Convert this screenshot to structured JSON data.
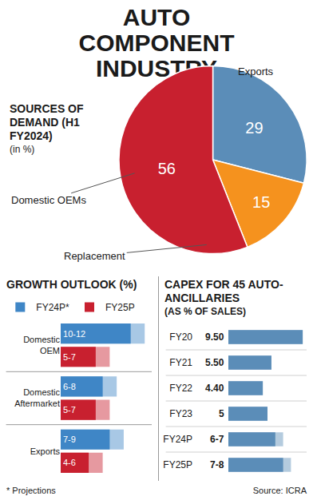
{
  "title": "AUTO COMPONENT INDUSTRY",
  "footnote": "* Projections",
  "source": "Source: ICRA",
  "chart_data": [
    {
      "type": "pie",
      "title": "SOURCES OF DEMAND (H1 FY2024)",
      "subtitle": "(in %)",
      "categories": [
        "Exports",
        "Replacement",
        "Domestic OEMs"
      ],
      "values": [
        29,
        15,
        56
      ],
      "colors": [
        "#5b8db8",
        "#f5921e",
        "#c8202f"
      ],
      "data_labels": true
    },
    {
      "type": "bar",
      "title": "GROWTH OUTLOOK (%)",
      "orientation": "horizontal",
      "categories": [
        "Domestic OEM",
        "Domestic Aftermarket",
        "Exports"
      ],
      "series": [
        {
          "name": "FY24P*",
          "color": "#3f86c6",
          "low": [
            10,
            6,
            7
          ],
          "values": [
            12,
            8,
            9
          ],
          "value_labels": [
            "10-12",
            "6-8",
            "7-9"
          ]
        },
        {
          "name": "FY25P",
          "color": "#c8202f",
          "low": [
            5,
            5,
            4
          ],
          "values": [
            7,
            7,
            6
          ],
          "value_labels": [
            "5-7",
            "5-7",
            "4-6"
          ]
        }
      ],
      "xlim": [
        0,
        13
      ],
      "data_labels": true,
      "tick_labels": "y",
      "legend": "top"
    },
    {
      "type": "bar",
      "title": "CAPEX FOR 45 AUTO-ANCILLARIES",
      "subtitle": "(AS % OF SALES)",
      "orientation": "horizontal",
      "categories": [
        "FY20",
        "FY21",
        "FY22",
        "FY23",
        "FY24P",
        "FY25P"
      ],
      "low": [
        9.5,
        5.5,
        4.4,
        5,
        6,
        7
      ],
      "values": [
        9.5,
        5.5,
        4.4,
        5,
        7,
        8
      ],
      "value_labels": [
        "9.50",
        "5.50",
        "4.40",
        "5",
        "6-7",
        "7-8"
      ],
      "color": "#5b8db8",
      "xlim": [
        0,
        10
      ],
      "data_labels": true,
      "tick_labels": "y"
    }
  ]
}
